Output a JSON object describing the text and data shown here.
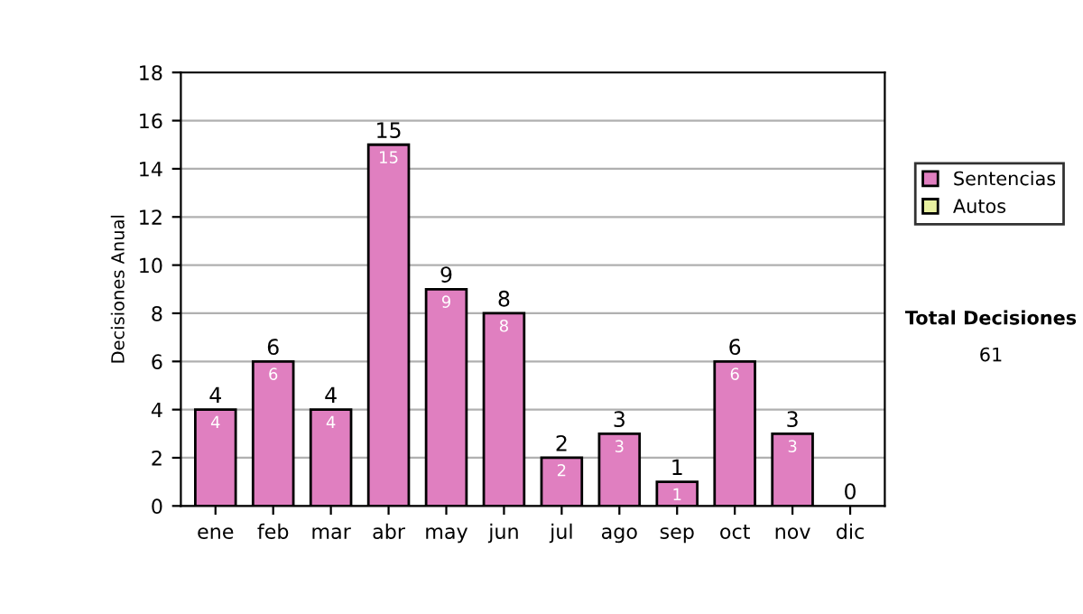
{
  "chart_data": {
    "type": "bar",
    "ylabel": "Decisiones Anual",
    "categories": [
      "ene",
      "feb",
      "mar",
      "abr",
      "may",
      "jun",
      "jul",
      "ago",
      "sep",
      "oct",
      "nov",
      "dic"
    ],
    "stacked": true,
    "series": [
      {
        "name": "Sentencias",
        "color": "#e07fc0",
        "values": [
          4,
          6,
          4,
          15,
          9,
          8,
          2,
          3,
          1,
          6,
          3,
          0
        ],
        "value_labels": [
          "4",
          "6",
          "4",
          "15",
          "9",
          "8",
          "2",
          "3",
          "1",
          "6",
          "3",
          null
        ]
      },
      {
        "name": "Autos",
        "color": "#e8f0a0",
        "values": [
          0,
          0,
          0,
          0,
          0,
          0,
          0,
          0,
          0,
          0,
          0,
          0
        ]
      }
    ],
    "totals": [
      "4",
      "6",
      "4",
      "15",
      "9",
      "8",
      "2",
      "3",
      "1",
      "6",
      "3",
      "0"
    ],
    "ylim": [
      0,
      18
    ],
    "yticks": [
      0,
      2,
      4,
      6,
      8,
      10,
      12,
      14,
      16,
      18
    ],
    "grid": "y",
    "legend": "right",
    "annotations": [
      "Total Decisiones",
      "61"
    ]
  }
}
